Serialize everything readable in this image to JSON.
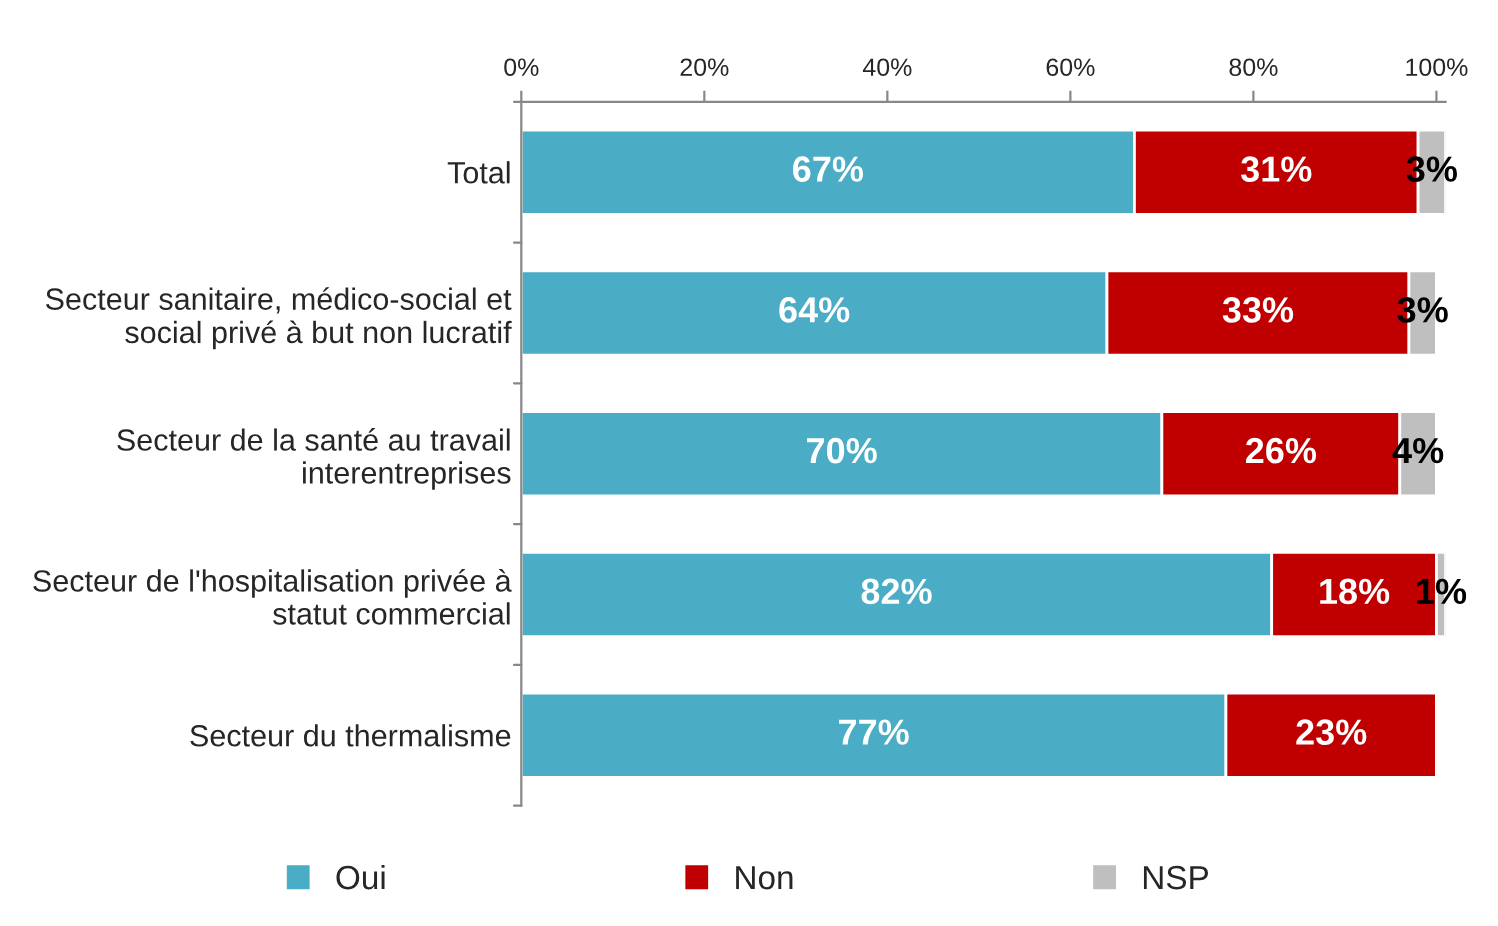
{
  "chart_data": {
    "type": "bar",
    "orientation": "horizontal",
    "stacked": true,
    "legend": "bottom",
    "grid": false,
    "categories": [
      "Total",
      "Secteur sanitaire, médico-social et social privé à but non lucratif",
      "Secteur de la santé au travail interentreprises",
      "Secteur de l'hospitalisation privée à statut commercial",
      "Secteur du thermalisme"
    ],
    "series": [
      {
        "name": "Oui",
        "color": "#4bacc6",
        "values": [
          67,
          64,
          70,
          82,
          77
        ],
        "value_labels": [
          "67%",
          "64%",
          "70%",
          "82%",
          "77%"
        ]
      },
      {
        "name": "Non",
        "color": "#c00000",
        "values": [
          31,
          33,
          26,
          18,
          23
        ],
        "value_labels": [
          "31%",
          "33%",
          "26%",
          "18%",
          "23%"
        ]
      },
      {
        "name": "NSP",
        "color": "#bfbfbf",
        "values": [
          3,
          3,
          4,
          1,
          null
        ],
        "value_labels": [
          "3%",
          "3%",
          "4%",
          "1%",
          null
        ]
      }
    ],
    "xlim": [
      0,
      101
    ],
    "xticks": [
      {
        "value": 0,
        "label": "0%"
      },
      {
        "value": 20,
        "label": "20%"
      },
      {
        "value": 40,
        "label": "40%"
      },
      {
        "value": 60,
        "label": "60%"
      },
      {
        "value": 80,
        "label": "80%"
      },
      {
        "value": 100,
        "label": "100%"
      }
    ]
  }
}
